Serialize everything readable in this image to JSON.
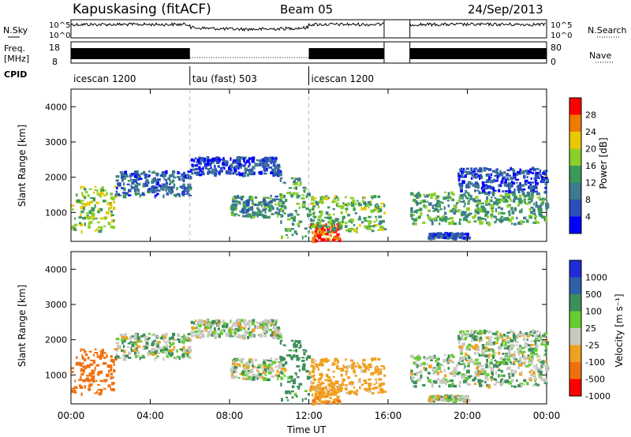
{
  "header": {
    "station": "Kapuskasing (fitACF)",
    "beam": "Beam 05",
    "date": "24/Sep/2013"
  },
  "noise_panel": {
    "left_label": "N.Sky",
    "right_label": "N.Search",
    "ticks": [
      "10^5",
      "10^0"
    ]
  },
  "freq_panel": {
    "label_line1": "Freq.",
    "label_line2": "[MHz]",
    "left_ticks": [
      "18",
      "8"
    ],
    "right_ticks": [
      "80",
      "0"
    ],
    "right_label": "Nave"
  },
  "cpid_panel": {
    "label": "CPID",
    "segments": [
      {
        "name": "icescan 1200",
        "start": 0,
        "end": 6
      },
      {
        "name": "tau (fast) 503",
        "start": 6,
        "end": 12
      },
      {
        "name": "icescan 1200",
        "start": 12,
        "end": 24
      }
    ]
  },
  "power_panel": {
    "ylabel": "Slant Range [km]",
    "yticks": [
      "1000",
      "2000",
      "3000",
      "4000"
    ],
    "colorbar_label": "Power [dB]",
    "colorbar_ticks": [
      "4",
      "8",
      "12",
      "16",
      "20",
      "24",
      "28"
    ],
    "colors": [
      "#0000ff",
      "#2a4fb8",
      "#3f7a8f",
      "#3a9a5a",
      "#8ccf2a",
      "#e8c800",
      "#f07a00",
      "#ff0000"
    ]
  },
  "velocity_panel": {
    "ylabel": "Slant Range [km]",
    "yticks": [
      "1000",
      "2000",
      "3000",
      "4000"
    ],
    "colorbar_label": "Velocity  [m s⁻¹]",
    "colorbar_ticks": [
      "1000",
      "500",
      "100",
      "25",
      "-25",
      "-100",
      "-500",
      "-1000"
    ],
    "colors": [
      "#1e2bd6",
      "#2f5fa8",
      "#3d8f5a",
      "#66cc33",
      "#c8c8c0",
      "#f0a020",
      "#f07010",
      "#ff0000"
    ]
  },
  "time_axis": {
    "xlabel": "Time UT",
    "ticks": [
      "00:00",
      "04:00",
      "08:00",
      "12:00",
      "16:00",
      "20:00",
      "00:00"
    ]
  },
  "chart_data": {
    "type": "heatmap",
    "title": "Kapuskasing (fitACF)  Beam 05  24/Sep/2013",
    "x_unit": "hours UT",
    "xlim": [
      0,
      24
    ],
    "ylim_km": [
      180,
      4500
    ],
    "data_gap_hours": [
      15.8,
      17.1
    ],
    "scatter_regions": [
      {
        "t0": 0.0,
        "t1": 2.2,
        "r0": 500,
        "r1": 1800,
        "power_dB": 18,
        "velocity": -300
      },
      {
        "t0": 2.2,
        "t1": 6.0,
        "r0": 1500,
        "r1": 2200,
        "power_dB": 8,
        "velocity": 10
      },
      {
        "t0": 6.0,
        "t1": 10.5,
        "r0": 2100,
        "r1": 2600,
        "power_dB": 6,
        "velocity": 5
      },
      {
        "t0": 8.0,
        "t1": 10.8,
        "r0": 900,
        "r1": 1500,
        "power_dB": 12,
        "velocity": 0
      },
      {
        "t0": 10.5,
        "t1": 12.0,
        "r0": 300,
        "r1": 2000,
        "power_dB": 14,
        "velocity": 60
      },
      {
        "t0": 12.0,
        "t1": 13.5,
        "r0": 200,
        "r1": 700,
        "power_dB": 28,
        "velocity": -80
      },
      {
        "t0": 12.0,
        "t1": 15.8,
        "r0": 500,
        "r1": 1500,
        "power_dB": 16,
        "velocity": -60
      },
      {
        "t0": 17.1,
        "t1": 24.0,
        "r0": 700,
        "r1": 1600,
        "power_dB": 14,
        "velocity": 10
      },
      {
        "t0": 19.5,
        "t1": 24.0,
        "r0": 1600,
        "r1": 2300,
        "power_dB": 6,
        "velocity": 5
      },
      {
        "t0": 18.0,
        "t1": 20.0,
        "r0": 300,
        "r1": 450,
        "power_dB": 6,
        "velocity": 0
      }
    ]
  }
}
